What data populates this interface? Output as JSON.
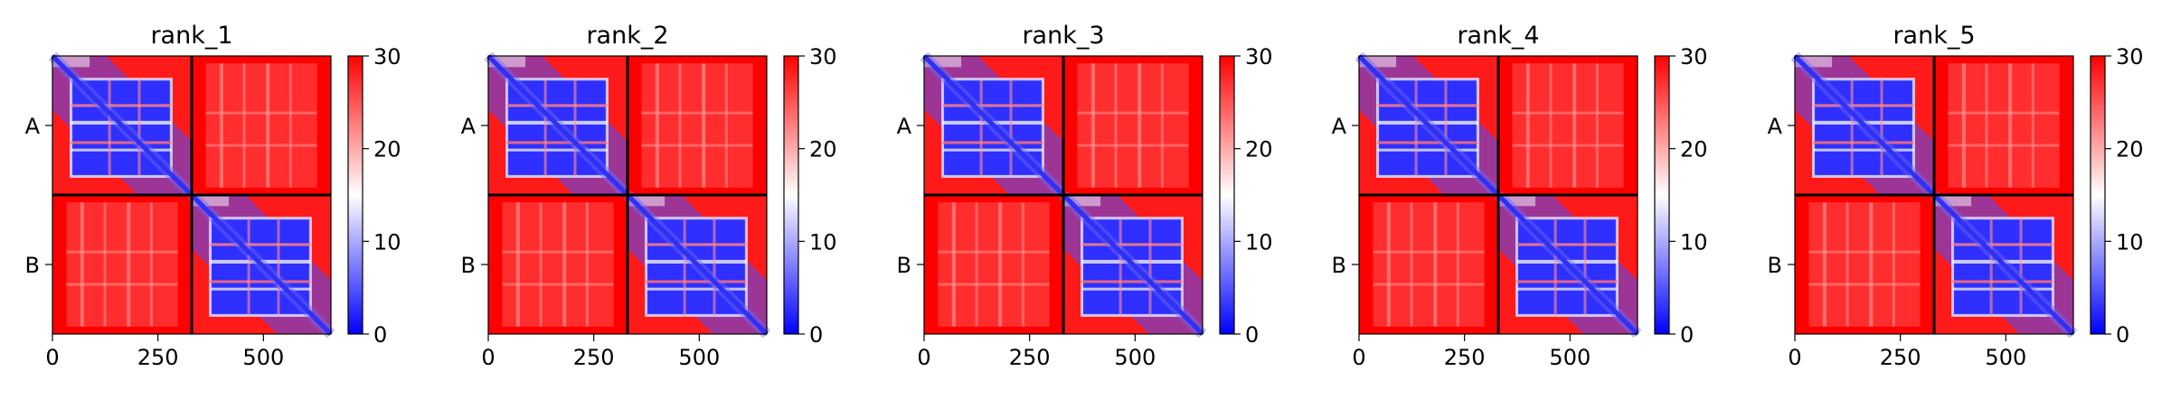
{
  "chart_data": [
    {
      "type": "heatmap",
      "title": "rank_1",
      "xlabel": "",
      "ylabel": "",
      "x_ticks": [
        0,
        250,
        500
      ],
      "x_range": [
        0,
        660
      ],
      "chain_boundary": 330,
      "y_tick_labels": [
        "A",
        "B"
      ],
      "colorbar": {
        "min": 0,
        "max": 30,
        "ticks": [
          0,
          10,
          20,
          30
        ],
        "colormap": "bwr"
      },
      "colors": {
        "low": "#0000ff",
        "mid": "#ffffff",
        "high": "#ff0000"
      },
      "grid": false
    },
    {
      "type": "heatmap",
      "title": "rank_2",
      "xlabel": "",
      "ylabel": "",
      "x_ticks": [
        0,
        250,
        500
      ],
      "x_range": [
        0,
        660
      ],
      "chain_boundary": 330,
      "y_tick_labels": [
        "A",
        "B"
      ],
      "colorbar": {
        "min": 0,
        "max": 30,
        "ticks": [
          0,
          10,
          20,
          30
        ],
        "colormap": "bwr"
      },
      "colors": {
        "low": "#0000ff",
        "mid": "#ffffff",
        "high": "#ff0000"
      },
      "grid": false
    },
    {
      "type": "heatmap",
      "title": "rank_3",
      "xlabel": "",
      "ylabel": "",
      "x_ticks": [
        0,
        250,
        500
      ],
      "x_range": [
        0,
        660
      ],
      "chain_boundary": 330,
      "y_tick_labels": [
        "A",
        "B"
      ],
      "colorbar": {
        "min": 0,
        "max": 30,
        "ticks": [
          0,
          10,
          20,
          30
        ],
        "colormap": "bwr"
      },
      "colors": {
        "low": "#0000ff",
        "mid": "#ffffff",
        "high": "#ff0000"
      },
      "grid": false
    },
    {
      "type": "heatmap",
      "title": "rank_4",
      "xlabel": "",
      "ylabel": "",
      "x_ticks": [
        0,
        250,
        500
      ],
      "x_range": [
        0,
        660
      ],
      "chain_boundary": 330,
      "y_tick_labels": [
        "A",
        "B"
      ],
      "colorbar": {
        "min": 0,
        "max": 30,
        "ticks": [
          0,
          10,
          20,
          30
        ],
        "colormap": "bwr"
      },
      "colors": {
        "low": "#0000ff",
        "mid": "#ffffff",
        "high": "#ff0000"
      },
      "grid": false
    },
    {
      "type": "heatmap",
      "title": "rank_5",
      "xlabel": "",
      "ylabel": "",
      "x_ticks": [
        0,
        250,
        500
      ],
      "x_range": [
        0,
        660
      ],
      "chain_boundary": 330,
      "y_tick_labels": [
        "A",
        "B"
      ],
      "colorbar": {
        "min": 0,
        "max": 30,
        "ticks": [
          0,
          10,
          20,
          30
        ],
        "colormap": "bwr"
      },
      "colors": {
        "low": "#0000ff",
        "mid": "#ffffff",
        "high": "#ff0000"
      },
      "grid": false
    }
  ]
}
